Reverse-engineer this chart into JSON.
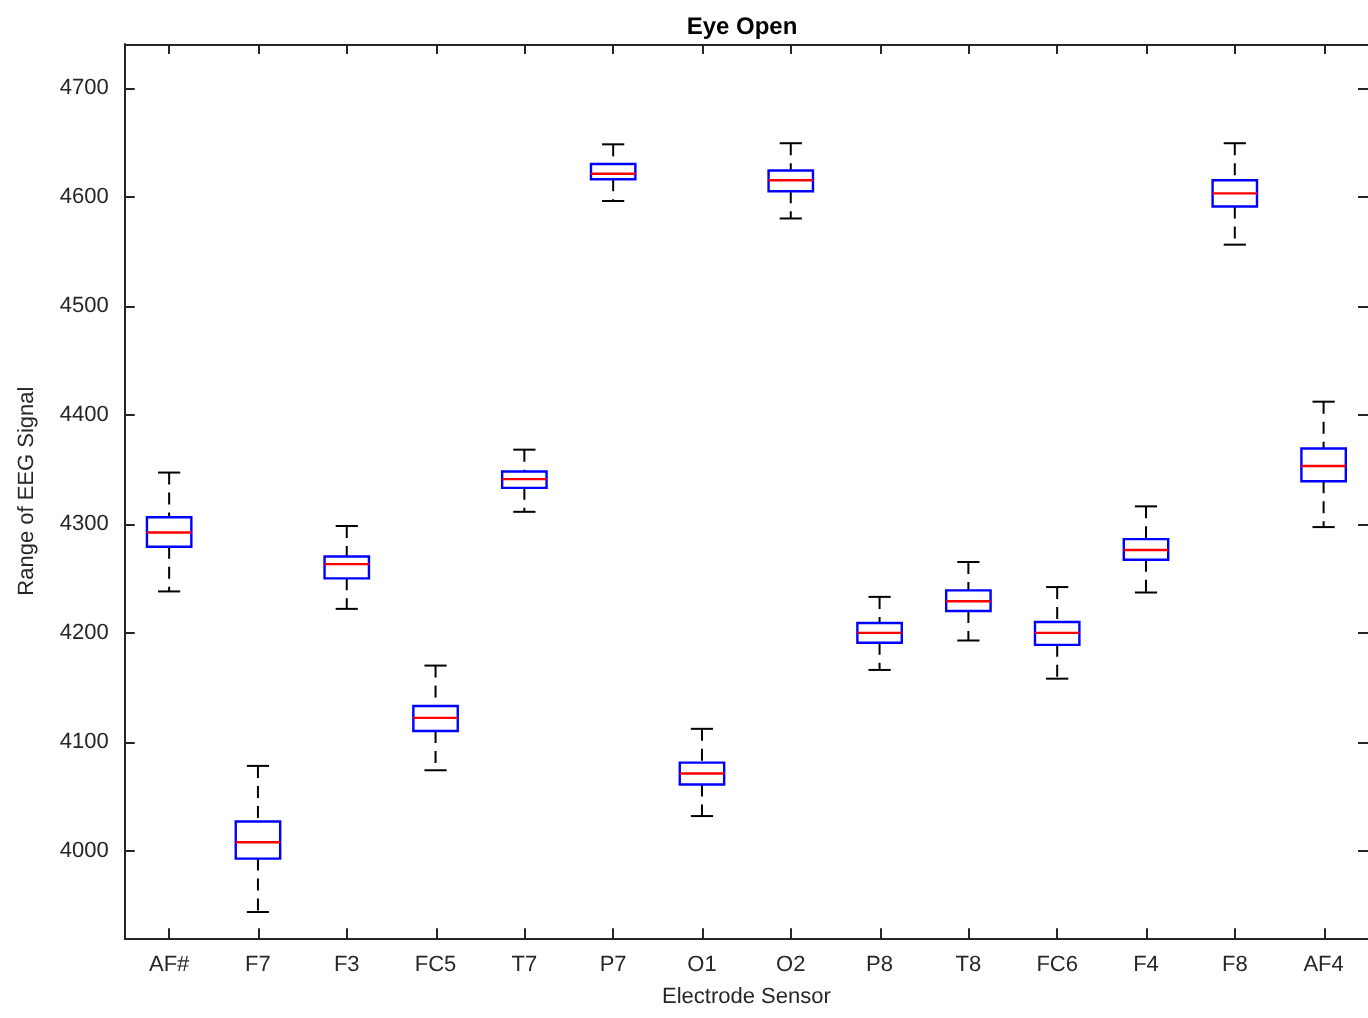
{
  "chart_data": {
    "type": "box",
    "title": "Eye Open",
    "xlabel": "Electrode Sensor",
    "ylabel": "Range of EEG Signal",
    "categories": [
      "AF#",
      "F7",
      "F3",
      "FC5",
      "T7",
      "P7",
      "O1",
      "O2",
      "P8",
      "T8",
      "FC6",
      "F4",
      "F8",
      "AF4"
    ],
    "color": "#0000ff",
    "line_style": "dashed",
    "grid": false,
    "ylim": [
      3920,
      4740
    ],
    "yticks": [
      4000,
      4100,
      4200,
      4300,
      4400,
      4500,
      4600,
      4700
    ],
    "boxes": [
      {
        "low": 4238,
        "q1": 4279,
        "median": 4292,
        "q3": 4306,
        "high": 4347
      },
      {
        "low": 3944,
        "q1": 3993,
        "median": 4008,
        "q3": 4027,
        "high": 4078
      },
      {
        "low": 4222,
        "q1": 4250,
        "median": 4263,
        "q3": 4270,
        "high": 4298
      },
      {
        "low": 4074,
        "q1": 4110,
        "median": 4122,
        "q3": 4133,
        "high": 4170
      },
      {
        "low": 4311,
        "q1": 4333,
        "median": 4341,
        "q3": 4348,
        "high": 4368
      },
      {
        "low": 4596,
        "q1": 4616,
        "median": 4621,
        "q3": 4630,
        "high": 4648
      },
      {
        "low": 4032,
        "q1": 4061,
        "median": 4071,
        "q3": 4081,
        "high": 4112
      },
      {
        "low": 4580,
        "q1": 4605,
        "median": 4615,
        "q3": 4624,
        "high": 4649
      },
      {
        "low": 4166,
        "q1": 4191,
        "median": 4200,
        "q3": 4209,
        "high": 4233
      },
      {
        "low": 4193,
        "q1": 4220,
        "median": 4229,
        "q3": 4239,
        "high": 4265
      },
      {
        "low": 4158,
        "q1": 4189,
        "median": 4200,
        "q3": 4210,
        "high": 4242
      },
      {
        "low": 4237,
        "q1": 4267,
        "median": 4276,
        "q3": 4286,
        "high": 4316
      },
      {
        "low": 4556,
        "q1": 4591,
        "median": 4603,
        "q3": 4615,
        "high": 4649
      },
      {
        "low": 4297,
        "q1": 4339,
        "median": 4353,
        "q3": 4369,
        "high": 4412
      }
    ]
  }
}
